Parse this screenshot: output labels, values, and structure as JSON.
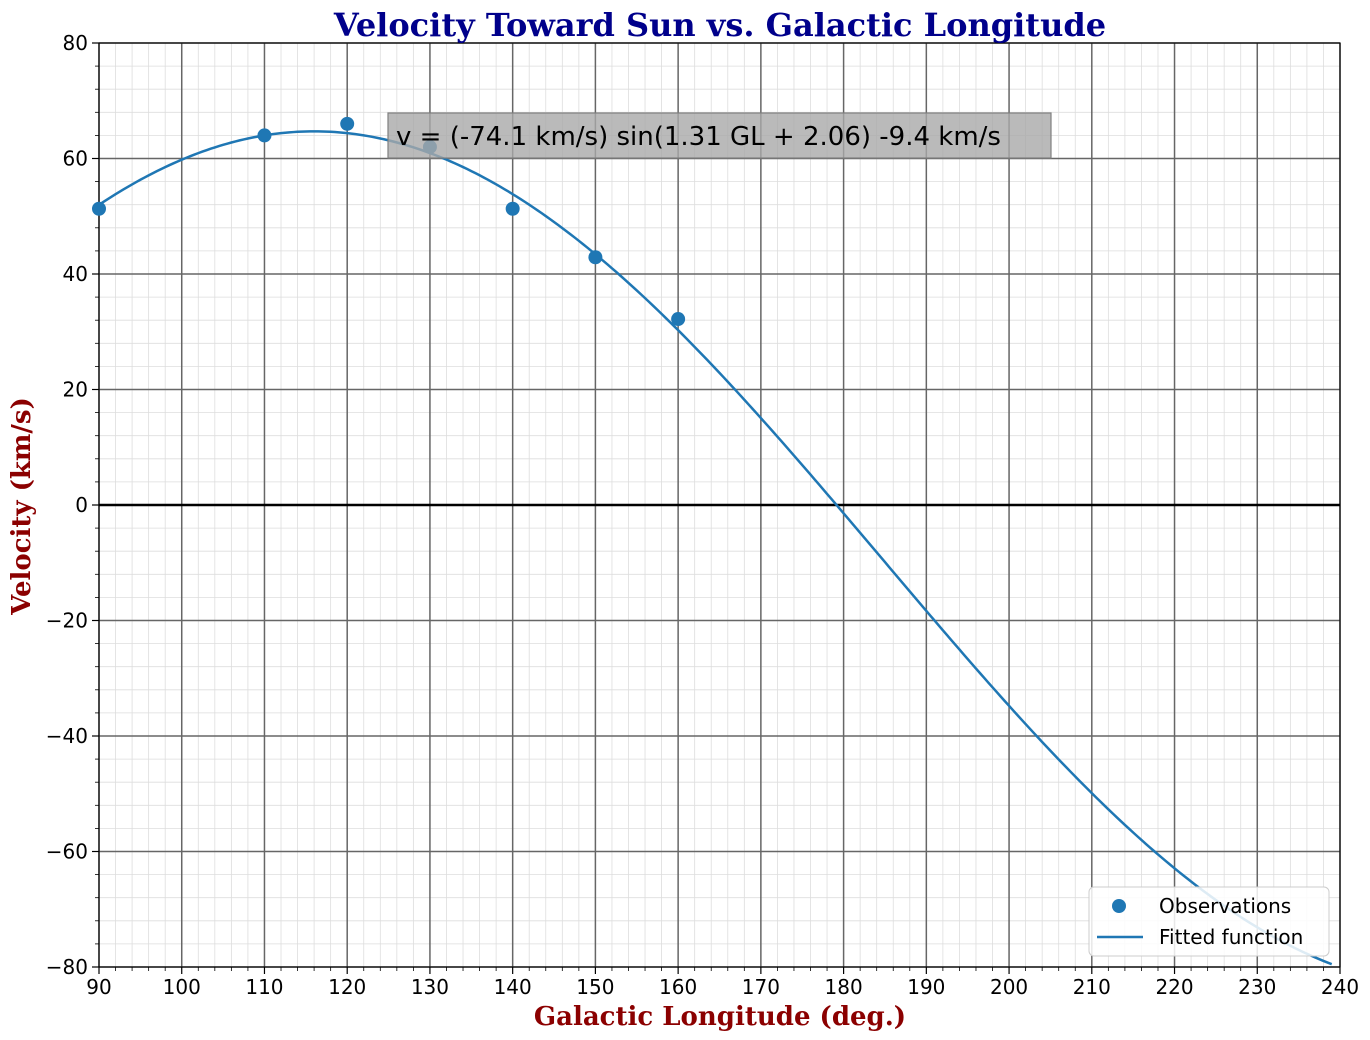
{
  "chart_data": {
    "type": "scatter",
    "title": "Velocity Toward Sun vs. Galactic Longitude",
    "xlabel": "Galactic Longitude (deg.)",
    "ylabel": "Velocity (km/s)",
    "xlim": [
      90,
      240
    ],
    "ylim": [
      -80,
      80
    ],
    "xticks": [
      "90",
      "100",
      "110",
      "120",
      "130",
      "140",
      "150",
      "160",
      "170",
      "180",
      "190",
      "200",
      "210",
      "220",
      "230",
      "240"
    ],
    "yticks": [
      "−80",
      "−60",
      "−40",
      "−20",
      "0",
      "20",
      "40",
      "60",
      "80"
    ],
    "grid": true,
    "legend_position": "bottom-right",
    "annotation": "v = (-74.1 km/s) sin(1.31 GL + 2.06) -9.4 km/s",
    "series": [
      {
        "name": "Observations",
        "kind": "scatter",
        "color": "#1f77b4",
        "x": [
          90,
          110,
          120,
          130,
          140,
          150,
          160
        ],
        "y": [
          51.3,
          64.0,
          66.0,
          62.0,
          51.3,
          42.9,
          32.2
        ]
      },
      {
        "name": "Fitted function",
        "kind": "line",
        "color": "#1f77b4",
        "amplitude": -74.1,
        "frequency": 1.31,
        "phase": 2.06,
        "offset": -9.4
      }
    ]
  }
}
